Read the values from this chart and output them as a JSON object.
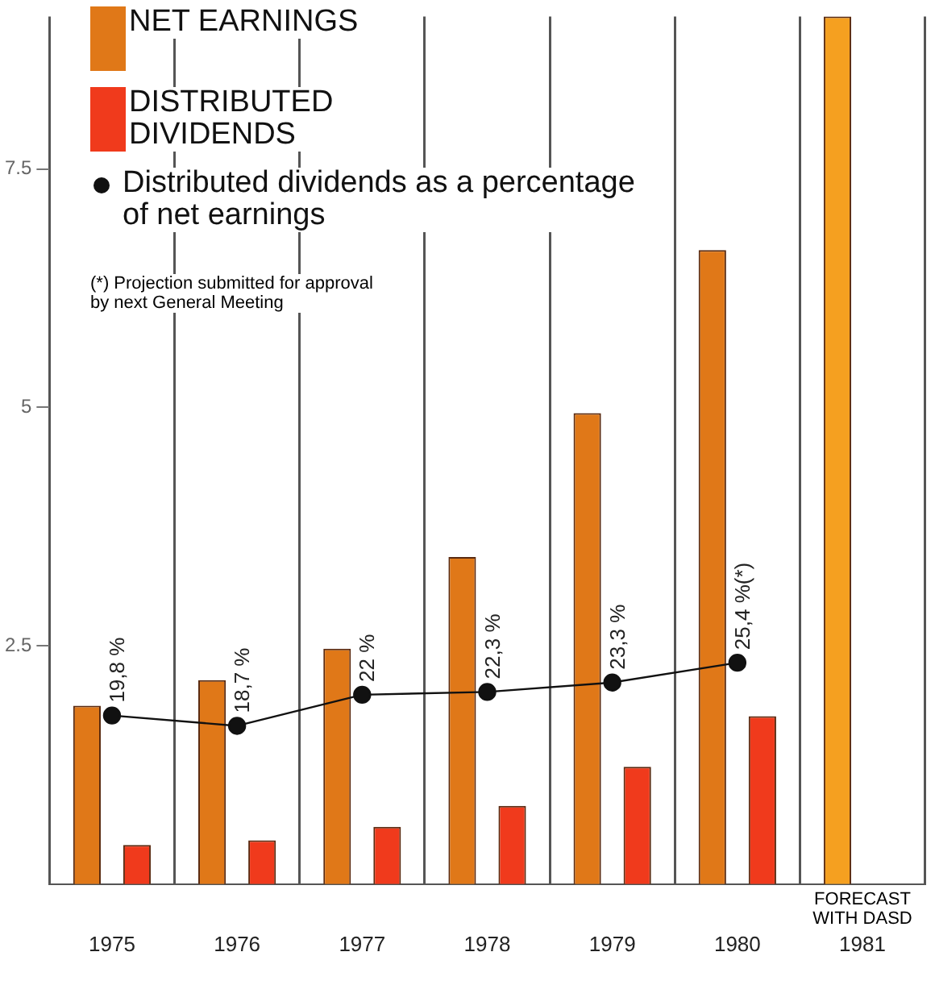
{
  "chart_data": {
    "type": "bar",
    "categories": [
      "1975",
      "1976",
      "1977",
      "1978",
      "1979",
      "1980",
      "1981"
    ],
    "series": [
      {
        "name": "NET EARNINGS",
        "color": "#e07818",
        "colors": [
          "#e07818",
          "#e07818",
          "#e07818",
          "#e07818",
          "#e07818",
          "#e07818",
          "#f5a020"
        ],
        "values": [
          1.87,
          2.14,
          2.47,
          3.43,
          4.94,
          6.65,
          9.1
        ]
      },
      {
        "name": "DISTRIBUTED DIVIDENDS",
        "color": "#f03a1c",
        "values": [
          0.41,
          0.46,
          0.6,
          0.82,
          1.23,
          1.76,
          null
        ]
      },
      {
        "name": "Distributed dividends as a percentage of net earnings",
        "type": "line",
        "axis": "y2",
        "color": "#111111",
        "marker": "circle",
        "values": [
          19.8,
          18.7,
          22,
          22.3,
          23.3,
          25.4,
          null
        ],
        "value_labels": [
          "19,8 %",
          "18,7 %",
          "22 %",
          "22,3 %",
          "23,3 %",
          "25,4 %(*)",
          null
        ]
      }
    ],
    "ylim": [
      0,
      9.1
    ],
    "yticks": [
      2.5,
      5,
      7.5
    ],
    "y2lim": [
      1.9,
      94
    ],
    "grid": "x",
    "legend": "top left",
    "annotations": [
      "(*) Projection submitted for approval by next General Meeting",
      "FORECAST WITH DASD"
    ]
  }
}
